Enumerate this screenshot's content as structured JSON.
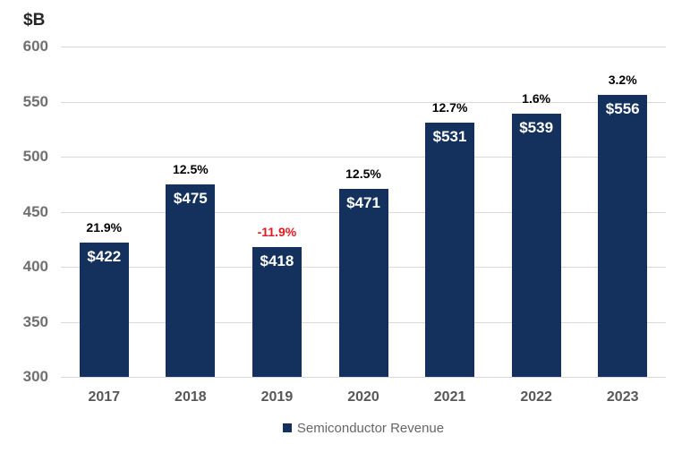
{
  "chart_data": {
    "type": "bar",
    "title": "",
    "ylabel": "$B",
    "xlabel": "",
    "ylim": [
      300,
      600
    ],
    "yticks": [
      600,
      550,
      500,
      450,
      400,
      350,
      300
    ],
    "grid": true,
    "categories": [
      "2017",
      "2018",
      "2019",
      "2020",
      "2021",
      "2022",
      "2023"
    ],
    "series": [
      {
        "name": "Semiconductor Revenue",
        "values": [
          422,
          475,
          418,
          471,
          531,
          539,
          556
        ]
      }
    ],
    "bar_value_labels": [
      "$422",
      "$475",
      "$418",
      "$471",
      "$531",
      "$539",
      "$556"
    ],
    "growth_labels": [
      "21.9%",
      "12.5%",
      "-11.9%",
      "12.5%",
      "12.7%",
      "1.6%",
      "3.2%"
    ],
    "legend_position": "bottom"
  },
  "legend": {
    "label": "Semiconductor Revenue"
  },
  "colors": {
    "bar": "#13315C",
    "gridline": "#D9D9D9",
    "value_label": "#FFFFFF",
    "growth_positive": "#000000",
    "growth_negative": "#E01A22",
    "y_axis_text": "#6F6F6F",
    "x_axis_text": "#575757",
    "legend_text": "#666666",
    "unit_text": "#262626"
  }
}
